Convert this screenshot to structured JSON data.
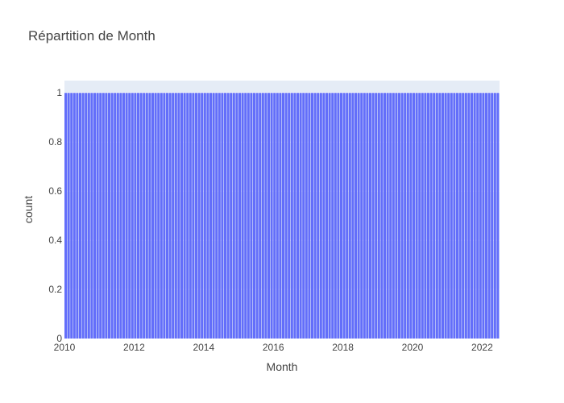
{
  "chart_data": {
    "type": "bar",
    "title": "Répartition de Month",
    "xlabel": "Month",
    "ylabel": "count",
    "x_start": "2010-01",
    "x_end": "2022-06",
    "x_bins": "monthly",
    "count_per_bin": 1,
    "ylim": [
      0,
      1.05
    ],
    "xticks": [
      "2010",
      "2012",
      "2014",
      "2016",
      "2018",
      "2020",
      "2022"
    ],
    "yticks": [
      "0",
      "0.2",
      "0.4",
      "0.6",
      "0.8",
      "1"
    ],
    "grid": true,
    "legend": "none",
    "colors": {
      "bar": "#636efa",
      "plot_background": "#e5ecf6",
      "grid": "#ffffff"
    }
  }
}
